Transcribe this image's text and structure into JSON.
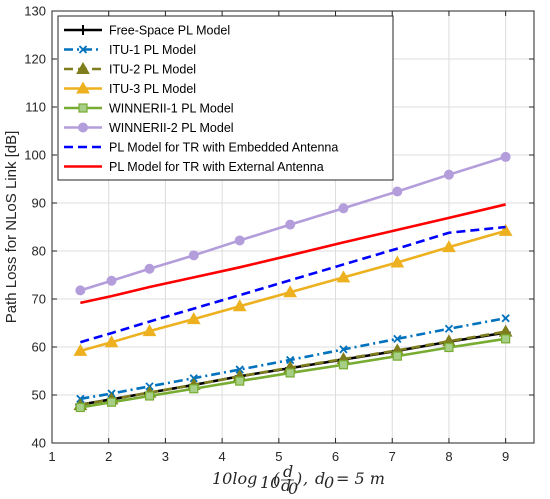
{
  "chart_data": {
    "type": "line",
    "xlabel": "10log10(d/d0), d0 = 5 m",
    "ylabel": "Path Loss for NLoS Link [dB]",
    "xlim": [
      1,
      9.5
    ],
    "ylim": [
      40,
      130
    ],
    "xticks": [
      "1",
      "2",
      "3",
      "4",
      "5",
      "6",
      "7",
      "8",
      "9"
    ],
    "yticks": [
      "40",
      "50",
      "60",
      "70",
      "80",
      "90",
      "100",
      "110",
      "120",
      "130"
    ],
    "grid": true,
    "legend_position": "top-left",
    "x": [
      1.5,
      2.05,
      2.72,
      3.5,
      4.31,
      5.2,
      6.14,
      7.09,
      8.0,
      9.0
    ],
    "series": [
      {
        "name": "Free-Space PL Model",
        "color": "#000000",
        "line": "solid",
        "marker": "plus",
        "values": [
          48.0,
          49.1,
          50.5,
          52.1,
          53.9,
          55.6,
          57.4,
          59.2,
          61.1,
          63.0
        ]
      },
      {
        "name": "ITU-1 PL Model",
        "color": "#0072BD",
        "line": "dashdot",
        "marker": "x",
        "values": [
          49.2,
          50.3,
          51.8,
          53.5,
          55.3,
          57.3,
          59.5,
          61.7,
          63.8,
          66.0
        ]
      },
      {
        "name": "ITU-2 PL Model",
        "color": "#7E7E1E",
        "line": "dashed",
        "marker": "triangle",
        "values": [
          47.9,
          49.1,
          50.5,
          52.1,
          53.9,
          55.7,
          57.5,
          59.3,
          61.2,
          63.2
        ]
      },
      {
        "name": "ITU-3 PL Model",
        "color": "#EDB120",
        "line": "solid",
        "marker": "triangle",
        "values": [
          59.2,
          61.0,
          63.3,
          65.8,
          68.5,
          71.4,
          74.5,
          77.6,
          80.8,
          84.2
        ]
      },
      {
        "name": "WINNERII-1 PL Model",
        "color": "#77AC30",
        "line": "solid",
        "marker": "square",
        "values": [
          47.4,
          48.5,
          49.8,
          51.3,
          52.9,
          54.6,
          56.3,
          58.1,
          59.9,
          61.7
        ]
      },
      {
        "name": "WINNERII-2 PL Model",
        "color": "#B39DDB",
        "line": "solid",
        "marker": "circle",
        "values": [
          71.8,
          73.8,
          76.3,
          79.1,
          82.2,
          85.5,
          88.9,
          92.4,
          95.9,
          99.6
        ]
      },
      {
        "name": "PL Model for TR with Embedded Antenna",
        "color": "#0000FF",
        "line": "dashed",
        "marker": "none",
        "values": [
          61.0,
          62.9,
          65.3,
          68.0,
          70.8,
          73.9,
          77.2,
          80.5,
          83.8,
          85.0
        ]
      },
      {
        "name": "PL Model for TR with External Antenna",
        "color": "#FF0000",
        "line": "solid",
        "marker": "none",
        "values": [
          69.2,
          70.6,
          72.5,
          74.5,
          76.6,
          79.1,
          81.8,
          84.4,
          86.9,
          89.7
        ]
      }
    ]
  }
}
